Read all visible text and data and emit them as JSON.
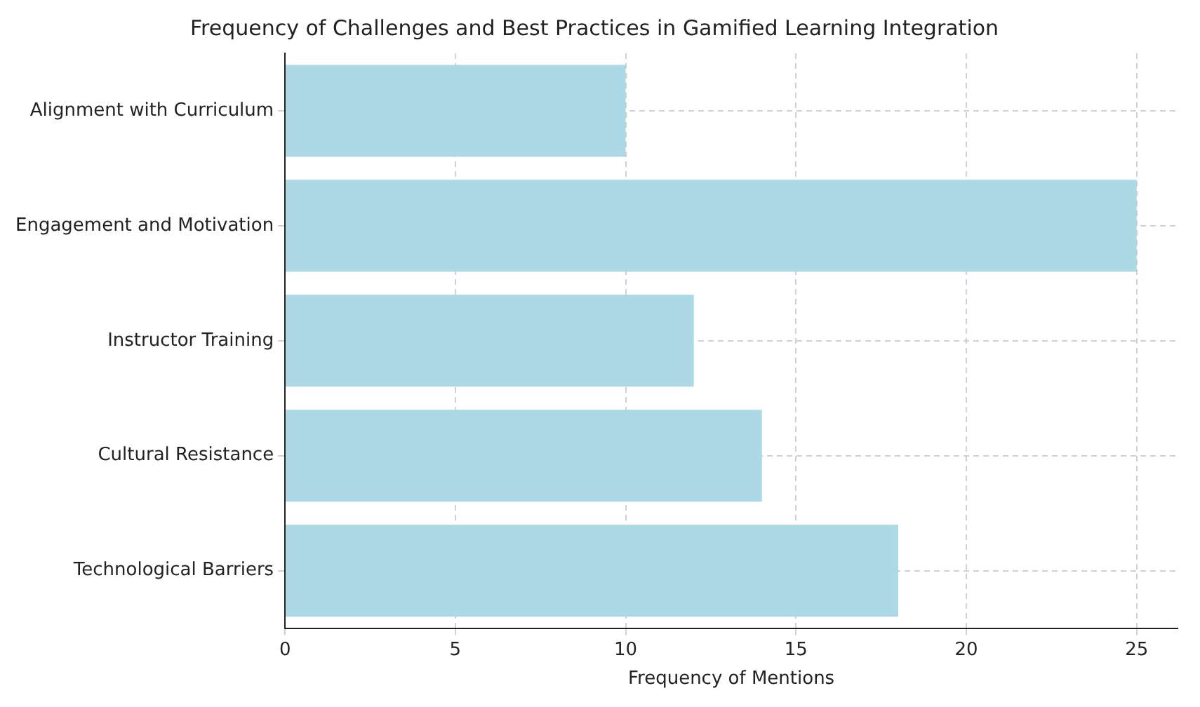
{
  "chart_data": {
    "type": "bar",
    "orientation": "horizontal",
    "title": "Frequency of Challenges and Best Practices in Gamified Learning Integration",
    "xlabel": "Frequency of Mentions",
    "categories": [
      "Alignment with Curriculum",
      "Engagement and Motivation",
      "Instructor Training",
      "Cultural Resistance",
      "Technological Barriers"
    ],
    "values": [
      10,
      25,
      12,
      14,
      18
    ],
    "color": "#add8e6",
    "xlim": [
      0,
      26.2
    ],
    "xticks": [
      0,
      5,
      10,
      15,
      20,
      25
    ],
    "grid": true
  }
}
